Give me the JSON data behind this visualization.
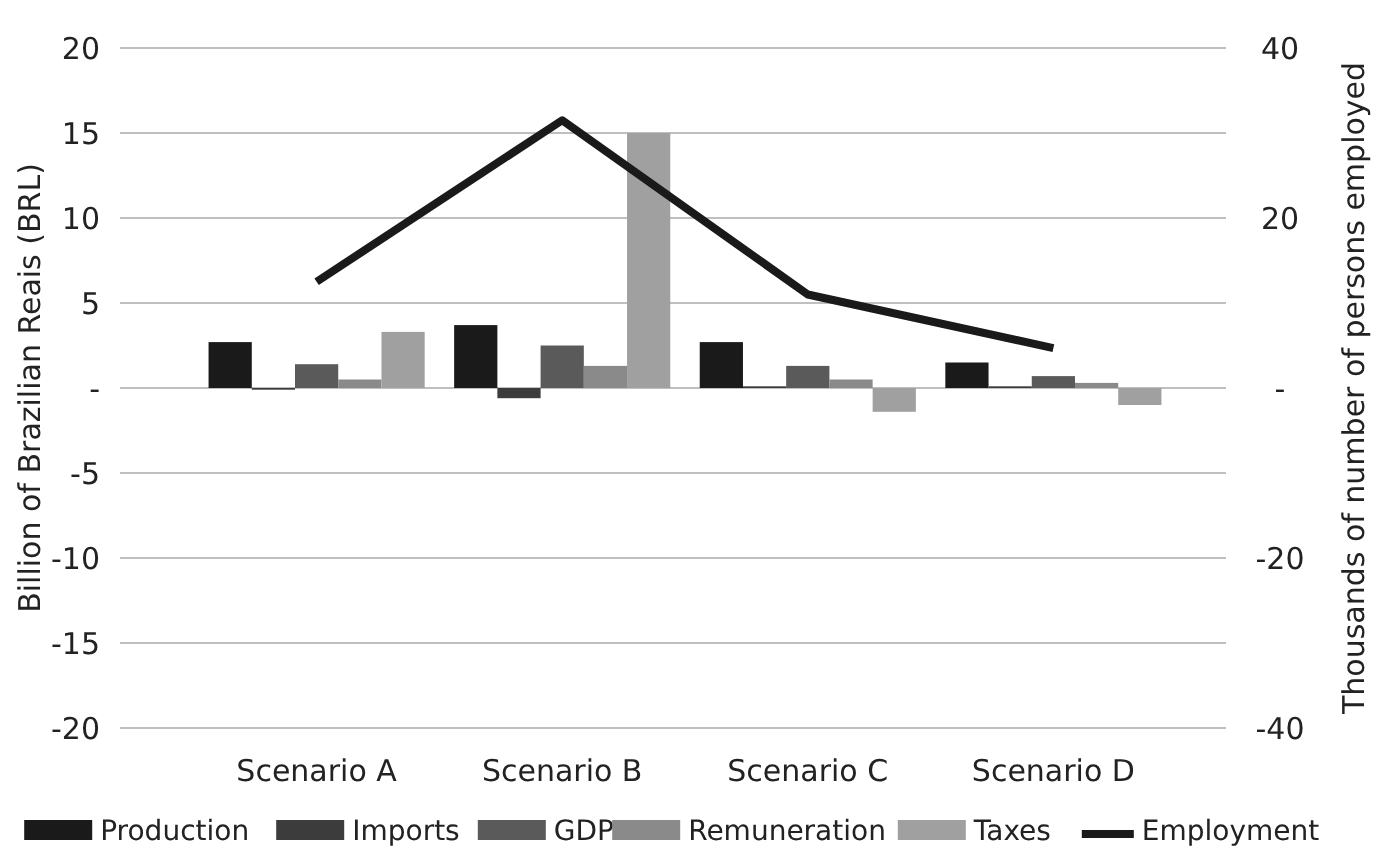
{
  "chart_data": {
    "type": "bar",
    "ylabel": "Billion of Brazilian Reais (BRL)",
    "y2label": "Thousands of number of persons employed",
    "categories": [
      "Scenario A",
      "Scenario B",
      "Scenario C",
      "Scenario D"
    ],
    "series": [
      {
        "name": "Production",
        "color": "#1a1a1a",
        "values": [
          2.7,
          3.7,
          2.7,
          1.5
        ]
      },
      {
        "name": "Imports",
        "color": "#3c3c3c",
        "values": [
          -0.1,
          -0.6,
          0.1,
          0.1
        ]
      },
      {
        "name": "GDP",
        "color": "#5a5a5a",
        "values": [
          1.4,
          2.5,
          1.3,
          0.7
        ]
      },
      {
        "name": "Remuneration",
        "color": "#8a8a8a",
        "values": [
          0.5,
          1.3,
          0.5,
          0.3
        ]
      },
      {
        "name": "Taxes",
        "color": "#a0a0a0",
        "values": [
          3.3,
          15,
          -1.4,
          -1.0
        ]
      },
      {
        "name": "Employment",
        "color": "#1a1a1a",
        "type": "line",
        "axis": "y2",
        "values": [
          12.5,
          31.5,
          11,
          4.7
        ]
      }
    ],
    "ylim": [
      -20,
      20
    ],
    "yticks": [
      -20,
      -15,
      -10,
      -5,
      {
        "value": 0,
        "label": "-"
      },
      5,
      10,
      15,
      20
    ],
    "y2lim": [
      -40,
      40
    ],
    "y2ticks": [
      -40,
      -20,
      {
        "value": 0,
        "label": "-"
      },
      20,
      40
    ],
    "grid": "y",
    "legend": "bottom"
  }
}
